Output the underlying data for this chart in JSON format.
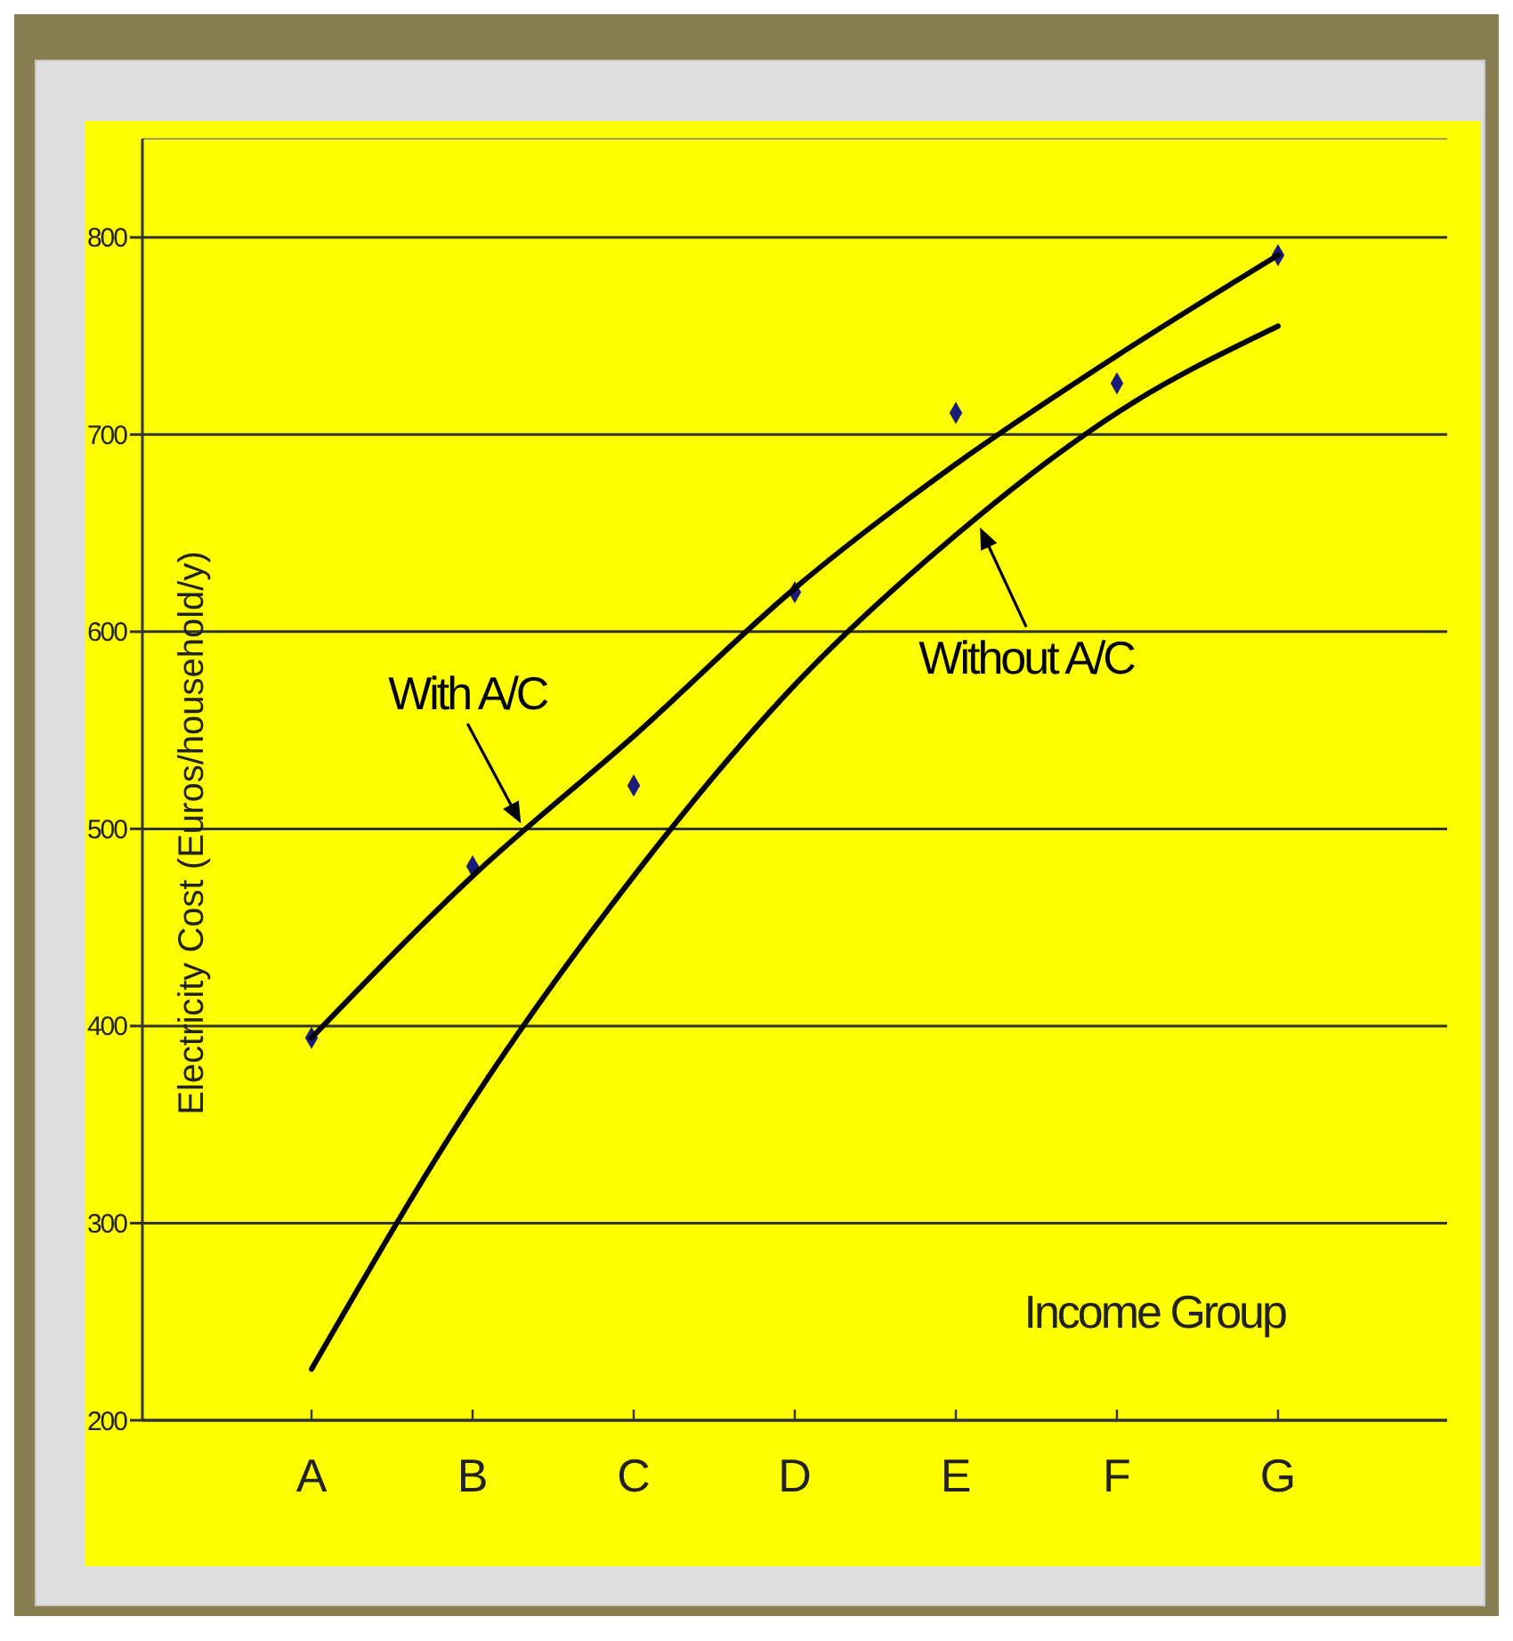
{
  "chart_data": {
    "type": "line",
    "xlabel": "Income Group",
    "ylabel": "Electricity Cost (Euros/household/y)",
    "categories": [
      "A",
      "B",
      "C",
      "D",
      "E",
      "F",
      "G"
    ],
    "series": [
      {
        "type": "scatter",
        "marker": "diamond",
        "color": "#1c1c78",
        "values": [
          394,
          481,
          522,
          620,
          711,
          726,
          791
        ]
      },
      {
        "name": "With A/C",
        "type": "line",
        "color": "#000000",
        "values": [
          394,
          476,
          547,
          622,
          685,
          740,
          791
        ]
      },
      {
        "name": "Without A/C",
        "color": "#000000",
        "values": [
          226,
          362,
          476,
          573,
          649,
          711,
          755
        ]
      }
    ],
    "ylim": [
      200,
      850
    ],
    "yticks": [
      200,
      300,
      400,
      500,
      600,
      700,
      800
    ],
    "grid": "y"
  }
}
